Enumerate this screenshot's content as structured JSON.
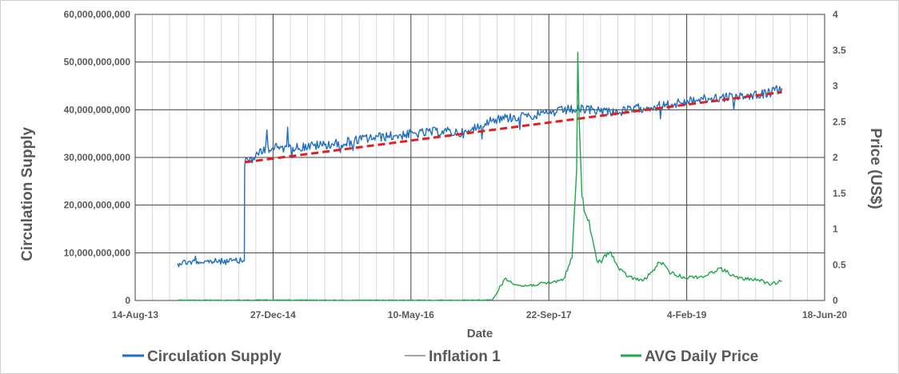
{
  "chart_data": {
    "type": "line",
    "xlabel": "Date",
    "ylabel_left": "Circulation Supply",
    "ylabel_right": "Price (US$)",
    "x_ticks": [
      "14-Aug-13",
      "27-Dec-14",
      "10-May-16",
      "22-Sep-17",
      "4-Feb-19",
      "18-Jun-20"
    ],
    "x_range": [
      "2013-08-14",
      "2020-06-18"
    ],
    "y_left_ticks": [
      "0",
      "10,000,000,000",
      "20,000,000,000",
      "30,000,000,000",
      "40,000,000,000",
      "50,000,000,000",
      "60,000,000,000"
    ],
    "y_left_range": [
      0,
      60000000000
    ],
    "y_right_ticks": [
      "0",
      "0.5",
      "1",
      "1.5",
      "2",
      "2.5",
      "3",
      "3.5",
      "4"
    ],
    "y_right_range": [
      0,
      4
    ],
    "grid": true,
    "legend_position": "bottom",
    "series": [
      {
        "name": "Circulation Supply",
        "axis": "left",
        "color": "#1f6fbf",
        "dates": [
          "2014-01-15",
          "2014-04-01",
          "2014-07-01",
          "2014-09-14",
          "2014-09-15",
          "2014-10-01",
          "2014-11-01",
          "2014-12-01",
          "2015-03-01",
          "2015-06-01",
          "2015-09-01",
          "2015-12-01",
          "2016-03-01",
          "2016-06-01",
          "2016-09-01",
          "2016-12-01",
          "2017-01-15",
          "2017-03-01",
          "2017-06-01",
          "2017-09-01",
          "2017-12-01",
          "2018-03-01",
          "2018-06-01",
          "2018-09-01",
          "2018-12-01",
          "2019-03-01",
          "2019-06-01",
          "2019-09-01",
          "2019-12-01",
          "2020-01-15"
        ],
        "values": [
          8000000000,
          8100000000,
          8200000000,
          8300000000,
          29000000000,
          29500000000,
          30500000000,
          32000000000,
          32000000000,
          32500000000,
          33000000000,
          34000000000,
          34500000000,
          35000000000,
          35500000000,
          35000000000,
          37000000000,
          38000000000,
          38500000000,
          39000000000,
          40000000000,
          40000000000,
          39500000000,
          40500000000,
          41000000000,
          42000000000,
          42500000000,
          43000000000,
          43500000000,
          44500000000
        ]
      },
      {
        "name": "Inflation 1",
        "axis": "left",
        "color": "#e0201b",
        "dates": [
          "2014-09-15",
          "2020-01-15"
        ],
        "values": [
          29000000000,
          43700000000
        ]
      },
      {
        "name": "AVG Daily Price",
        "axis": "right",
        "color": "#1fa84a",
        "dates": [
          "2014-01-15",
          "2014-06-01",
          "2015-01-01",
          "2016-01-01",
          "2016-12-01",
          "2017-03-01",
          "2017-04-15",
          "2017-05-15",
          "2017-06-15",
          "2017-08-01",
          "2017-10-01",
          "2017-11-15",
          "2017-12-15",
          "2018-01-01",
          "2018-01-05",
          "2018-01-10",
          "2018-01-20",
          "2018-02-01",
          "2018-02-15",
          "2018-03-01",
          "2018-03-15",
          "2018-04-01",
          "2018-05-01",
          "2018-06-01",
          "2018-07-01",
          "2018-08-01",
          "2018-09-01",
          "2018-10-01",
          "2018-11-01",
          "2018-12-01",
          "2019-01-01",
          "2019-02-01",
          "2019-03-01",
          "2019-04-01",
          "2019-05-01",
          "2019-06-01",
          "2019-07-01",
          "2019-08-01",
          "2019-09-01",
          "2019-10-01",
          "2019-11-01",
          "2019-12-01",
          "2020-01-15"
        ],
        "values": [
          0.004,
          0.004,
          0.005,
          0.004,
          0.005,
          0.006,
          0.3,
          0.25,
          0.2,
          0.22,
          0.25,
          0.3,
          0.6,
          1.8,
          3.5,
          2.5,
          1.5,
          1.2,
          1.1,
          0.8,
          0.55,
          0.55,
          0.7,
          0.45,
          0.35,
          0.3,
          0.28,
          0.4,
          0.55,
          0.4,
          0.35,
          0.32,
          0.33,
          0.33,
          0.38,
          0.45,
          0.4,
          0.32,
          0.3,
          0.3,
          0.28,
          0.22,
          0.27
        ]
      }
    ]
  }
}
